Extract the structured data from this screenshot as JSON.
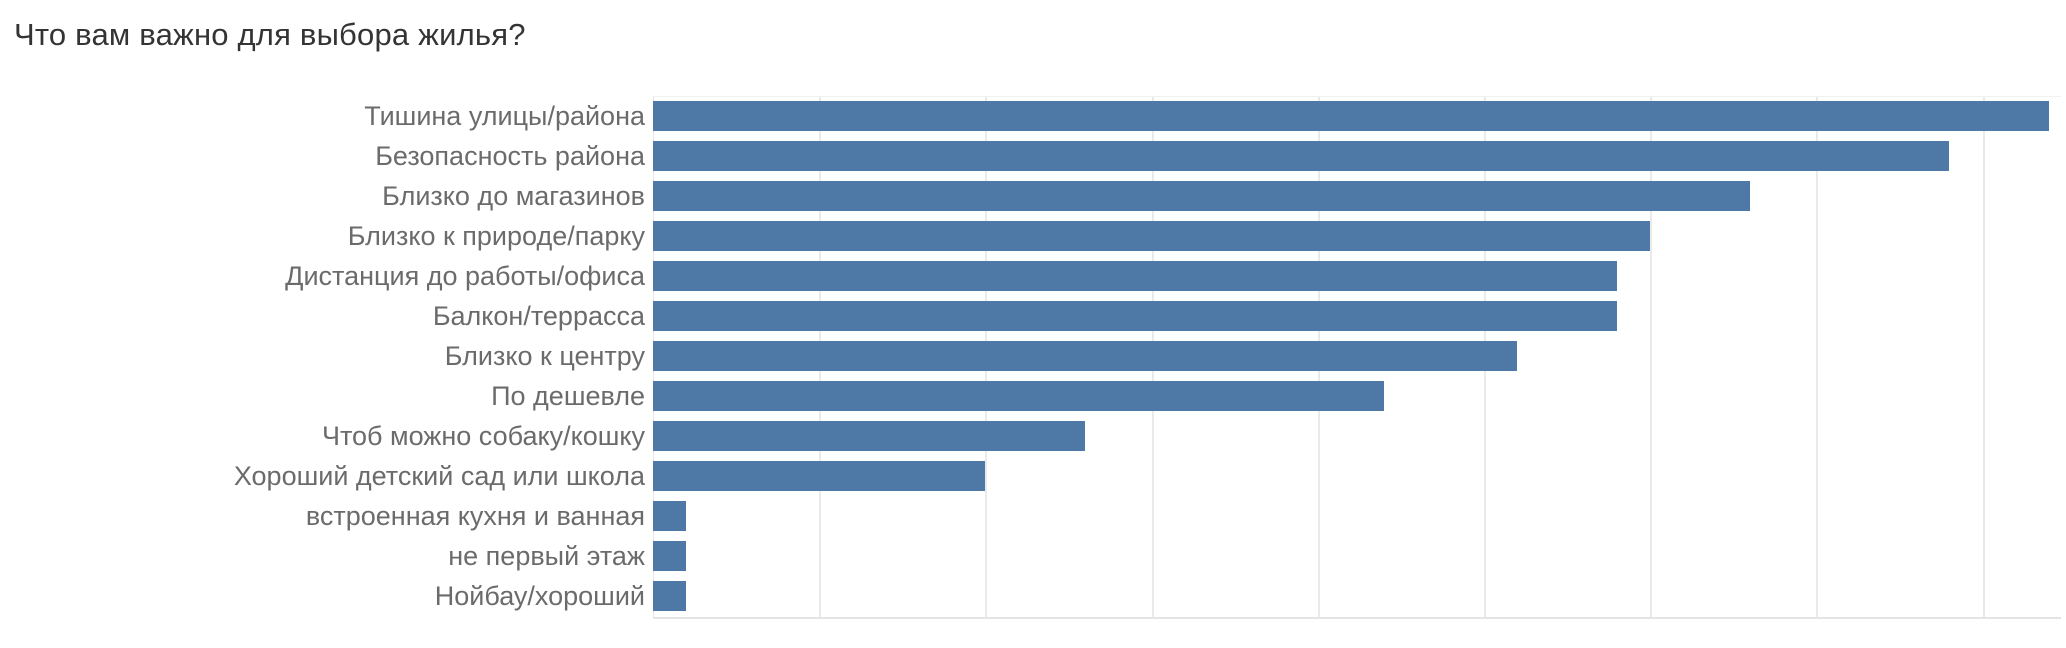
{
  "title": "Что вам важно для выбора жилья?",
  "colors": {
    "bar": "#4e79a7",
    "gridline": "#eaeaea",
    "axis_line": "#e4e4e4",
    "label_text": "#6b6b6b",
    "title_text": "#343434",
    "background": "#ffffff"
  },
  "chart_data": {
    "type": "bar",
    "orientation": "horizontal",
    "title": "Что вам важно для выбора жилья?",
    "categories": [
      "Тишина улицы/района",
      "Безопасность района",
      "Близко до магазинов",
      "Близко к природе/парку",
      "Дистанция до работы/офиса",
      "Балкон/террасса",
      "Близко к центру",
      "По дешевле",
      "Чтоб можно собаку/кошку",
      "Хороший детский сад или школа",
      "встроенная кухня и ванная",
      "не первый этаж",
      "Нойбау/хороший"
    ],
    "values": [
      42,
      39,
      33,
      30,
      29,
      29,
      26,
      22,
      13,
      10,
      1,
      1,
      1
    ],
    "xlabel": "",
    "ylabel": "",
    "xlim": [
      0,
      42.33
    ],
    "gridline_interval": 5,
    "grid": true,
    "axis_tick_labels_visible": false,
    "legend": "none",
    "sort": "descending"
  }
}
